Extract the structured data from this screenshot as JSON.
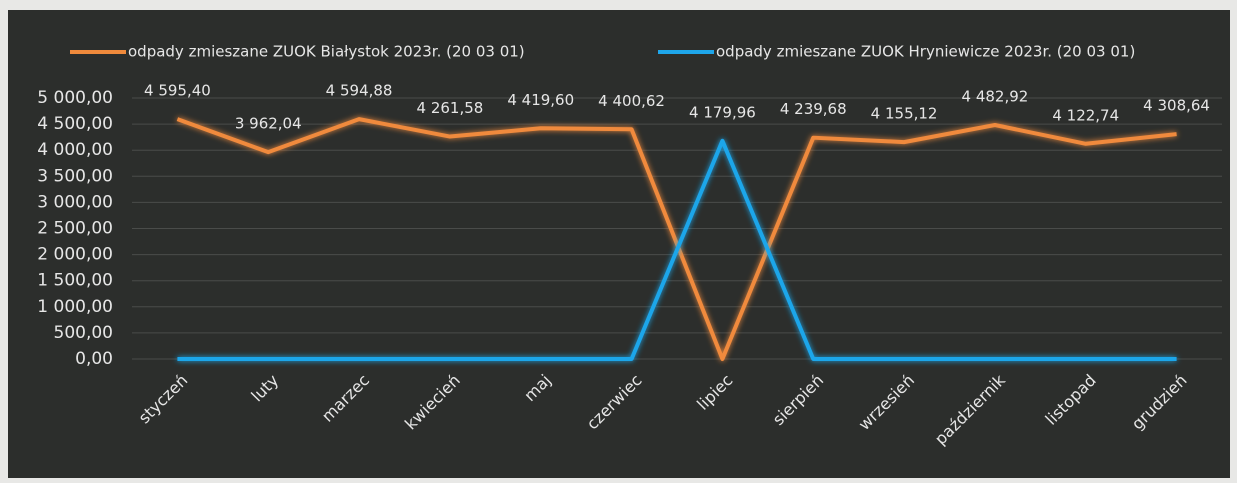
{
  "chart_data": {
    "type": "line",
    "categories": [
      "styczeń",
      "luty",
      "marzec",
      "kwiecień",
      "maj",
      "czerwiec",
      "lipiec",
      "sierpień",
      "wrzesień",
      "październik",
      "listopad",
      "grudzień"
    ],
    "series": [
      {
        "name": "odpady zmieszane ZUOK Białystok 2023r. (20 03 01)",
        "color": "#f08a3c",
        "values": [
          4595.4,
          3962.04,
          4594.88,
          4261.58,
          4419.6,
          4400.62,
          0,
          4239.68,
          4155.12,
          4482.92,
          4122.74,
          4308.64
        ],
        "value_labels": [
          "4 595,40",
          "3 962,04",
          "4 594,88",
          "4 261,58",
          "4 419,60",
          "4 400,62",
          null,
          "4 239,68",
          "4 155,12",
          "4 482,92",
          "4 122,74",
          "4 308,64"
        ]
      },
      {
        "name": "odpady zmieszane ZUOK Hryniewicze 2023r. (20 03 01)",
        "color": "#1ea6ea",
        "values": [
          0,
          0,
          0,
          0,
          0,
          0,
          4179.96,
          0,
          0,
          0,
          0,
          0
        ],
        "value_labels": [
          null,
          null,
          null,
          null,
          null,
          null,
          "4 179,96",
          null,
          null,
          null,
          null,
          null
        ]
      }
    ],
    "ylim": [
      0,
      5000
    ],
    "yticks": [
      {
        "value": 0,
        "label": "0,00"
      },
      {
        "value": 500,
        "label": "500,00"
      },
      {
        "value": 1000,
        "label": "1 000,00"
      },
      {
        "value": 1500,
        "label": "1 500,00"
      },
      {
        "value": 2000,
        "label": "2 000,00"
      },
      {
        "value": 2500,
        "label": "2 500,00"
      },
      {
        "value": 3000,
        "label": "3 000,00"
      },
      {
        "value": 3500,
        "label": "3 500,00"
      },
      {
        "value": 4000,
        "label": "4 000,00"
      },
      {
        "value": 4500,
        "label": "4 500,00"
      },
      {
        "value": 5000,
        "label": "5 000,00"
      }
    ],
    "grid": true,
    "legend": "top"
  }
}
